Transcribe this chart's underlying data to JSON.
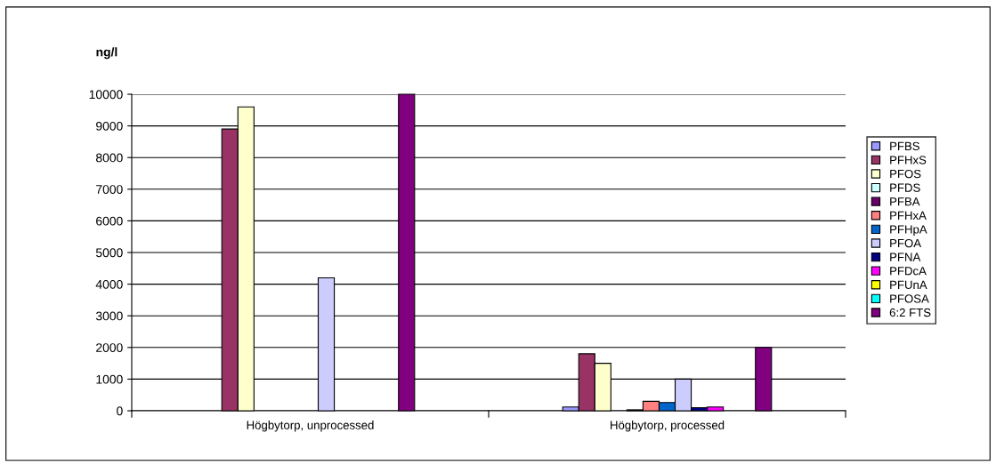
{
  "chart_data": {
    "type": "bar",
    "ylabel": "ng/l",
    "categories": [
      "Högbytorp, unprocessed",
      "Högbytorp, processed"
    ],
    "ylim": [
      0,
      10000
    ],
    "yticks": [
      0,
      1000,
      2000,
      3000,
      4000,
      5000,
      6000,
      7000,
      8000,
      9000,
      10000
    ],
    "grid": "y",
    "legend": "right",
    "series": [
      {
        "name": "PFBS",
        "color": "#9999ff",
        "values": [
          null,
          120
        ]
      },
      {
        "name": "PFHxS",
        "color": "#993366",
        "values": [
          8900,
          1800
        ]
      },
      {
        "name": "PFOS",
        "color": "#ffffcc",
        "values": [
          9600,
          1500
        ]
      },
      {
        "name": "PFDS",
        "color": "#ccffff",
        "values": [
          null,
          null
        ]
      },
      {
        "name": "PFBA",
        "color": "#660066",
        "values": [
          null,
          30
        ]
      },
      {
        "name": "PFHxA",
        "color": "#ff8080",
        "values": [
          null,
          300
        ]
      },
      {
        "name": "PFHpA",
        "color": "#0066cc",
        "values": [
          null,
          260
        ]
      },
      {
        "name": "PFOA",
        "color": "#ccccff",
        "values": [
          4200,
          1000
        ]
      },
      {
        "name": "PFNA",
        "color": "#000080",
        "values": [
          null,
          100
        ]
      },
      {
        "name": "PFDcA",
        "color": "#ff00ff",
        "values": [
          null,
          120
        ]
      },
      {
        "name": "PFUnA",
        "color": "#ffff00",
        "values": [
          null,
          null
        ]
      },
      {
        "name": "PFOSA",
        "color": "#00ffff",
        "values": [
          null,
          null
        ]
      },
      {
        "name": "6:2 FTS",
        "color": "#800080",
        "values": [
          10000,
          2000
        ]
      }
    ]
  }
}
